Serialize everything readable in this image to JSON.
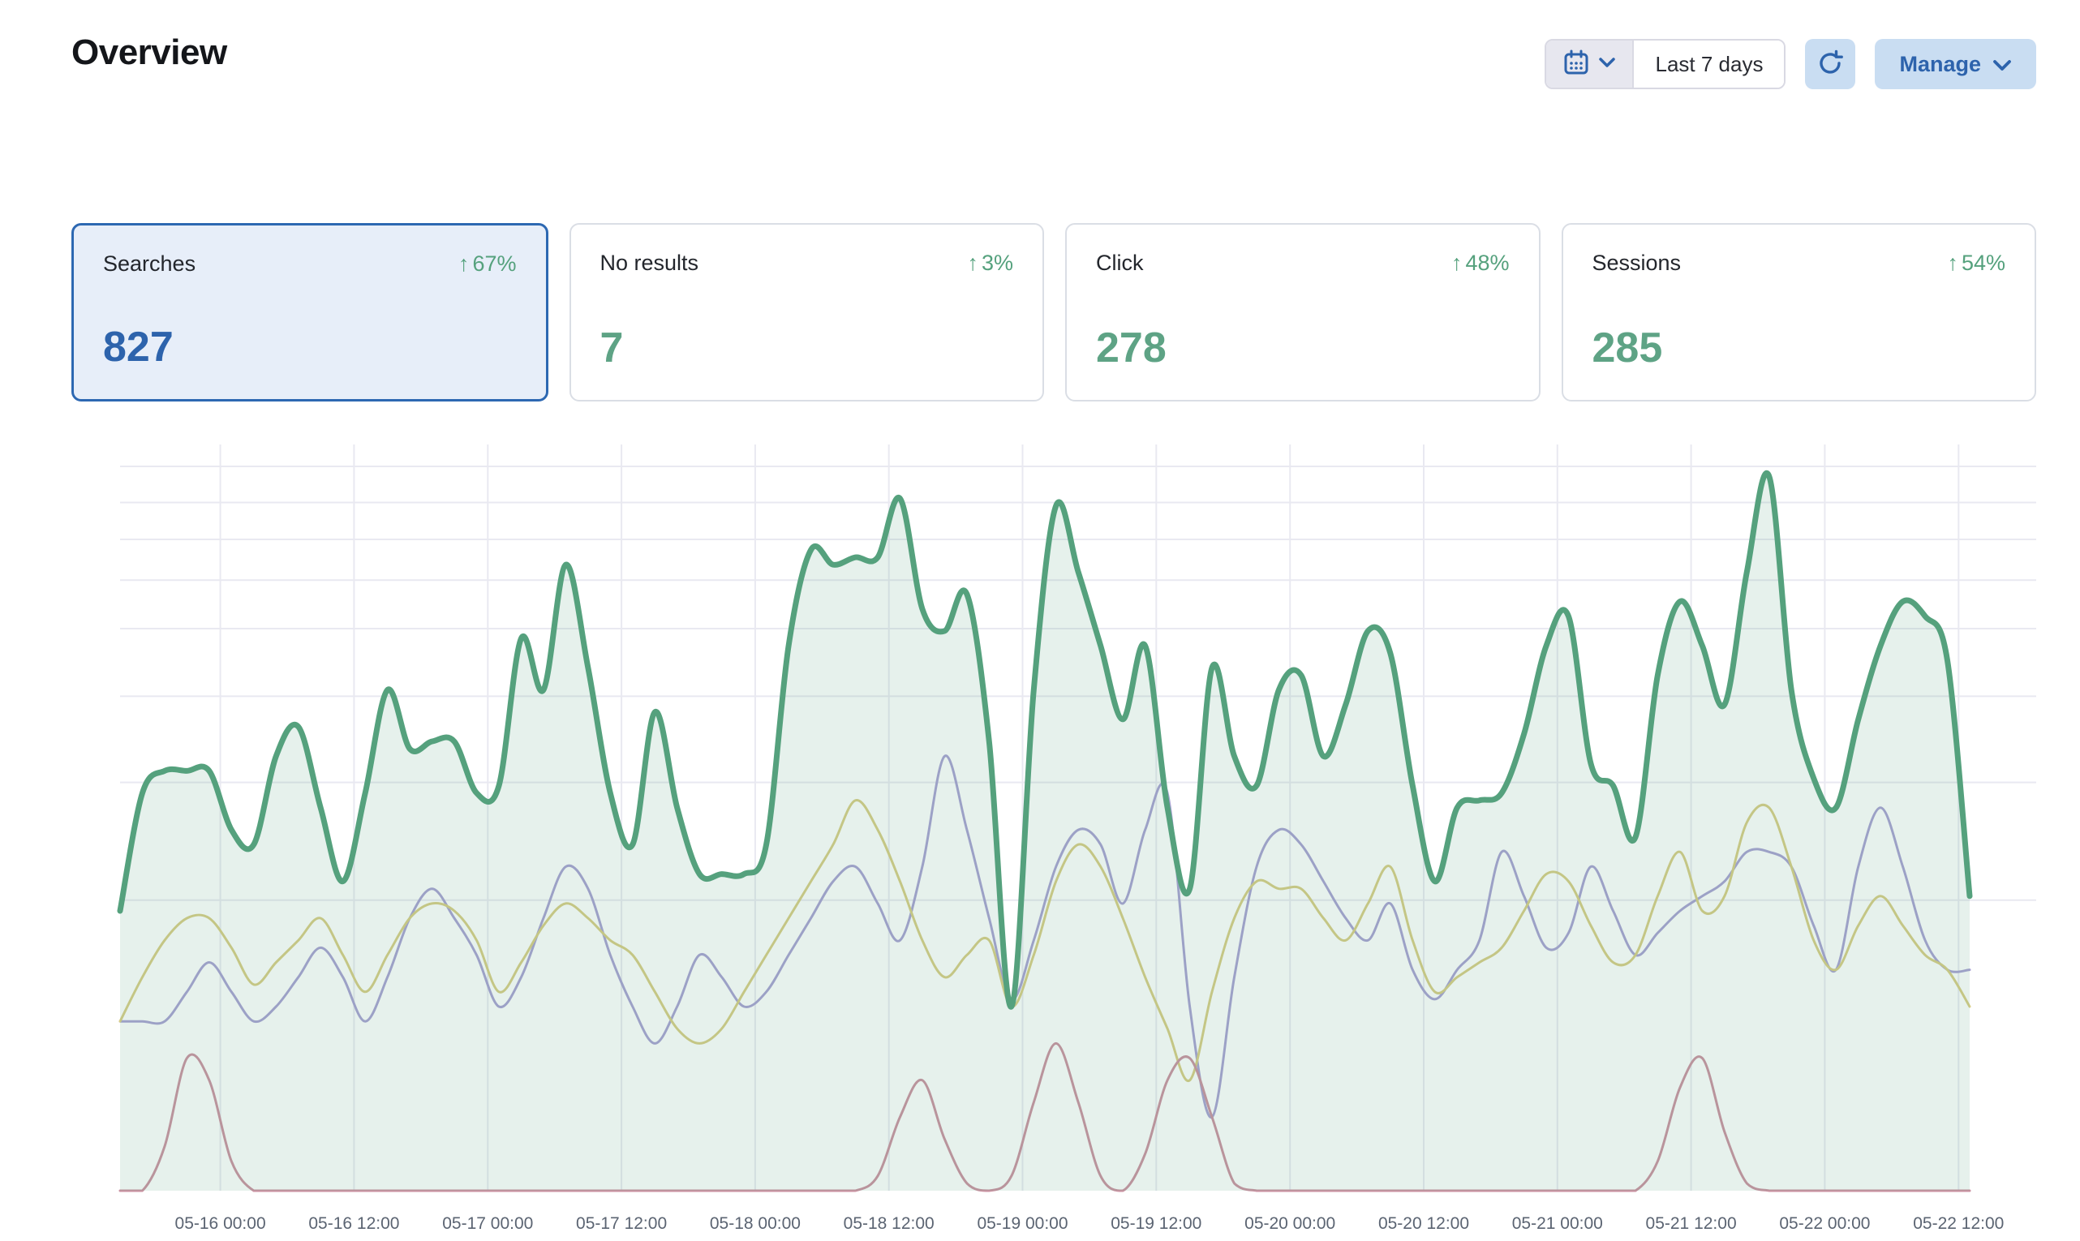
{
  "page": {
    "title": "Overview"
  },
  "toolbar": {
    "date_range_label": "Last 7 days",
    "manage_label": "Manage"
  },
  "colors": {
    "accent_blue": "#2d63ac",
    "accent_green": "#55a17d",
    "button_bg": "#c9ddf2",
    "selected_card_bg": "#e7eef9",
    "selected_card_border": "#2d68b2",
    "grid": "#e9e9f1",
    "axis_text": "#5b6472"
  },
  "cards": [
    {
      "label": "Searches",
      "delta": "67%",
      "arrow": "↑",
      "value": "827",
      "selected": true
    },
    {
      "label": "No results",
      "delta": "3%",
      "arrow": "↑",
      "value": "7",
      "selected": false
    },
    {
      "label": "Click",
      "delta": "48%",
      "arrow": "↑",
      "value": "278",
      "selected": false
    },
    {
      "label": "Sessions",
      "delta": "54%",
      "arrow": "↑",
      "value": "285",
      "selected": false
    }
  ],
  "chart_data": {
    "type": "area",
    "title": "",
    "xlabel": "",
    "ylabel": "",
    "legend_visible": false,
    "grid_on": true,
    "x_start": "05-15 15:00",
    "x_step_hours": 2,
    "n_points": 84,
    "x_total_hours": 166,
    "x_tick_labels": [
      "05-16 00:00",
      "05-16 12:00",
      "05-17 00:00",
      "05-17 12:00",
      "05-18 00:00",
      "05-18 12:00",
      "05-19 00:00",
      "05-19 12:00",
      "05-20 00:00",
      "05-20 12:00",
      "05-21 00:00",
      "05-21 12:00",
      "05-22 00:00",
      "05-22 12:00"
    ],
    "x_first_tick_offset_hours": 9,
    "x_tick_interval_hours": 12,
    "y_axis": {
      "labels_visible": false,
      "scale": "relative height 0-100 (no visible tick labels, log-like spacing)"
    },
    "y_gridline_fractions_from_top": [
      0.058,
      0.105,
      0.153,
      0.206,
      0.269,
      0.357,
      0.469,
      0.622
    ],
    "series": [
      {
        "name": "series-green-main",
        "color": "#55a17d",
        "width": 7,
        "fill": "rgba(85,161,125,0.15)",
        "values": [
          38,
          54,
          57,
          57,
          57,
          49,
          47,
          59,
          63,
          52,
          42,
          54,
          68,
          60,
          61,
          61,
          54,
          55,
          75,
          68,
          85,
          71,
          54,
          47,
          65,
          52,
          43,
          43,
          43,
          47,
          74,
          87,
          85,
          86,
          86,
          94,
          79,
          76,
          81,
          61,
          25,
          68,
          93,
          84,
          74,
          64,
          74,
          52,
          41,
          71,
          59,
          55,
          68,
          70,
          59,
          66,
          76,
          73,
          55,
          42,
          52,
          53,
          54,
          62,
          74,
          78,
          58,
          55,
          48,
          70,
          80,
          74,
          66,
          84,
          97,
          68,
          56,
          52,
          64,
          74,
          80,
          78,
          72,
          40
        ]
      },
      {
        "name": "series-yellow",
        "color": "#d8cd86",
        "width": 3,
        "fill": "none",
        "values": [
          23,
          29,
          34,
          37,
          37,
          33,
          28,
          31,
          34,
          37,
          32,
          27,
          32,
          37,
          39,
          38,
          34,
          27,
          31,
          36,
          39,
          37,
          34,
          32,
          27,
          22,
          20,
          22,
          27,
          32,
          37,
          42,
          47,
          53,
          49,
          42,
          34,
          29,
          32,
          34,
          25,
          32,
          42,
          47,
          44,
          37,
          29,
          22,
          15,
          27,
          37,
          42,
          41,
          41,
          37,
          34,
          39,
          44,
          34,
          27,
          29,
          31,
          33,
          38,
          43,
          42,
          36,
          31,
          32,
          40,
          46,
          38,
          40,
          50,
          52,
          44,
          34,
          30,
          36,
          40,
          36,
          32,
          30,
          25
        ]
      },
      {
        "name": "series-purple",
        "color": "#a8a2d3",
        "width": 3,
        "fill": "none",
        "values": [
          23,
          23,
          23,
          27,
          31,
          27,
          23,
          25,
          29,
          33,
          29,
          23,
          29,
          37,
          41,
          37,
          32,
          25,
          29,
          37,
          44,
          41,
          32,
          25,
          20,
          25,
          32,
          29,
          25,
          27,
          32,
          37,
          42,
          44,
          39,
          34,
          44,
          59,
          49,
          37,
          26,
          34,
          44,
          49,
          47,
          39,
          49,
          54,
          25,
          10,
          29,
          44,
          49,
          47,
          42,
          37,
          34,
          39,
          30,
          26,
          30,
          34,
          46,
          40,
          33,
          35,
          44,
          38,
          32,
          35,
          38,
          40,
          42,
          46,
          46,
          44,
          36,
          30,
          44,
          52,
          44,
          34,
          30,
          30
        ]
      },
      {
        "name": "series-pink",
        "color": "#ca92a1",
        "width": 3,
        "fill": "none",
        "values": [
          0,
          0,
          6,
          18,
          15,
          4,
          0,
          0,
          0,
          0,
          0,
          0,
          0,
          0,
          0,
          0,
          0,
          0,
          0,
          0,
          0,
          0,
          0,
          0,
          0,
          0,
          0,
          0,
          0,
          0,
          0,
          0,
          0,
          0,
          2,
          10,
          15,
          7,
          1,
          0,
          2,
          12,
          20,
          12,
          2,
          0,
          5,
          15,
          18,
          10,
          1,
          0,
          0,
          0,
          0,
          0,
          0,
          0,
          0,
          0,
          0,
          0,
          0,
          0,
          0,
          0,
          0,
          0,
          0,
          4,
          14,
          18,
          8,
          1,
          0,
          0,
          0,
          0,
          0,
          0,
          0,
          0,
          0,
          0
        ]
      }
    ]
  }
}
